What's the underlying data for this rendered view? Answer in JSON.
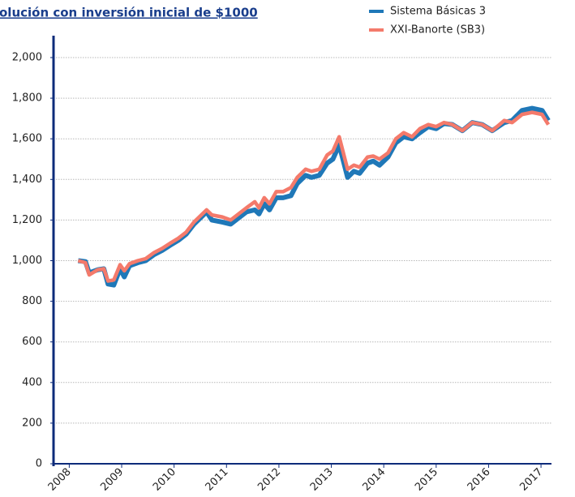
{
  "chart_data": {
    "type": "line",
    "title": "olución con inversión inicial de $1000",
    "x": [
      2008.17,
      2008.31,
      2008.38,
      2008.54,
      2008.66,
      2008.74,
      2008.85,
      2008.97,
      2009.05,
      2009.15,
      2009.31,
      2009.46,
      2009.62,
      2009.77,
      2009.92,
      2010.08,
      2010.23,
      2010.38,
      2010.62,
      2010.72,
      2010.92,
      2011.08,
      2011.23,
      2011.38,
      2011.54,
      2011.62,
      2011.72,
      2011.82,
      2011.95,
      2012.08,
      2012.23,
      2012.35,
      2012.51,
      2012.62,
      2012.77,
      2012.92,
      2013.03,
      2013.15,
      2013.31,
      2013.43,
      2013.54,
      2013.69,
      2013.8,
      2013.92,
      2014.08,
      2014.23,
      2014.38,
      2014.54,
      2014.69,
      2014.85,
      2015,
      2015.15,
      2015.31,
      2015.5,
      2015.69,
      2015.88,
      2016.07,
      2016.3,
      2016.45,
      2016.64,
      2016.83,
      2017.02,
      2017.14
    ],
    "series": [
      {
        "name": "Sistema Básicas 3",
        "color": "#1f78b8",
        "values": [
          1000,
          995,
          940,
          955,
          960,
          885,
          880,
          960,
          920,
          975,
          990,
          1000,
          1030,
          1050,
          1075,
          1100,
          1130,
          1180,
          1240,
          1200,
          1190,
          1180,
          1210,
          1240,
          1250,
          1230,
          1280,
          1250,
          1310,
          1310,
          1320,
          1380,
          1420,
          1410,
          1420,
          1480,
          1500,
          1570,
          1410,
          1440,
          1430,
          1480,
          1490,
          1470,
          1510,
          1580,
          1610,
          1600,
          1630,
          1660,
          1650,
          1675,
          1670,
          1640,
          1680,
          1670,
          1640,
          1680,
          1690,
          1740,
          1750,
          1740,
          1690
        ]
      },
      {
        "name": "XXI-Banorte (SB3)",
        "color": "#f47a6b",
        "values": [
          1000,
          990,
          930,
          955,
          960,
          900,
          905,
          980,
          950,
          985,
          1000,
          1010,
          1040,
          1060,
          1085,
          1110,
          1140,
          1190,
          1250,
          1225,
          1215,
          1200,
          1230,
          1260,
          1290,
          1260,
          1310,
          1280,
          1340,
          1340,
          1360,
          1410,
          1450,
          1440,
          1450,
          1520,
          1540,
          1610,
          1450,
          1470,
          1460,
          1510,
          1515,
          1500,
          1530,
          1600,
          1630,
          1610,
          1650,
          1670,
          1660,
          1680,
          1670,
          1640,
          1680,
          1670,
          1640,
          1690,
          1680,
          1720,
          1730,
          1720,
          1670
        ]
      }
    ],
    "xlim": [
      2007.7,
      2017.2
    ],
    "xticks": [
      2008,
      2009,
      2010,
      2011,
      2012,
      2013,
      2014,
      2015,
      2016,
      2017
    ],
    "ylim": [
      0,
      2000
    ],
    "yticks": [
      0,
      200,
      400,
      600,
      800,
      {
        "value": 1000,
        "label": "1,000"
      },
      {
        "value": 1200,
        "label": "1,200"
      },
      {
        "value": 1400,
        "label": "1,400"
      },
      {
        "value": 1600,
        "label": "1,600"
      },
      {
        "value": 1800,
        "label": "1,800"
      },
      {
        "value": 2000,
        "label": "2,000"
      }
    ],
    "grid": true,
    "legend": "upper right"
  }
}
